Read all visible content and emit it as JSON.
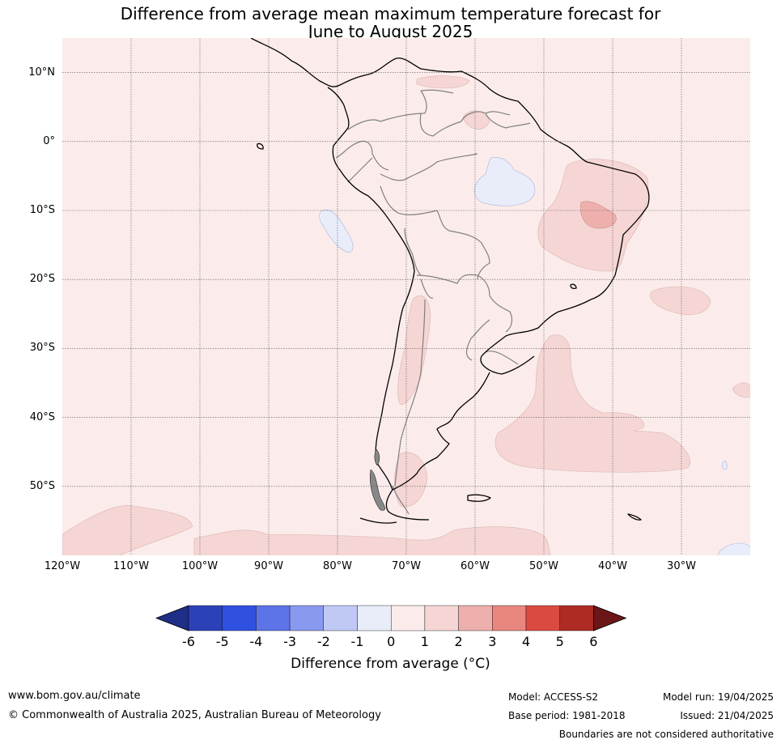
{
  "title_line1": "Difference from average mean maximum temperature forecast for",
  "title_line2": "June to August 2025",
  "map": {
    "projection": "equirectangular",
    "lon_range": [
      -120,
      -20
    ],
    "lat_range": [
      -60,
      15
    ],
    "background_anomaly_class": "0 to 1",
    "lat_labels": [
      "10°N",
      "0°",
      "10°S",
      "20°S",
      "30°S",
      "40°S",
      "50°S"
    ],
    "lon_labels": [
      "120°W",
      "110°W",
      "100°W",
      "90°W",
      "80°W",
      "70°W",
      "60°W",
      "50°W",
      "40°W",
      "30°W"
    ],
    "colors": {
      "ocean_base": "#fbeceb",
      "class_1_2": "#f5d6d4",
      "class_2_3": "#eeb0ad",
      "class_m1_0": "#e9edfa",
      "coast": "#000000",
      "borders": "#808080",
      "grid": "#555555"
    }
  },
  "colorbar": {
    "ticks": [
      "-6",
      "-5",
      "-4",
      "-3",
      "-2",
      "-1",
      "0",
      "1",
      "2",
      "3",
      "4",
      "5",
      "6"
    ],
    "colors": [
      "#1f2e86",
      "#2a41b8",
      "#3050e0",
      "#5d74e8",
      "#8999ef",
      "#c0c8f5",
      "#e9edfa",
      "#fbeceb",
      "#f5d6d4",
      "#eeb0ad",
      "#e8877f",
      "#db4a40",
      "#ad2b23",
      "#6b1717"
    ],
    "label": "Difference from average (°C)"
  },
  "footer": {
    "website": "www.bom.gov.au/climate",
    "copyright": "© Commonwealth of Australia 2025, Australian Bureau of Meteorology",
    "model": "Model: ACCESS-S2",
    "base_period": "Base period: 1981-2018",
    "model_run": "Model run: 19/04/2025",
    "issued": "Issued: 21/04/2025",
    "disclaimer": "Boundaries are not considered authoritative"
  }
}
